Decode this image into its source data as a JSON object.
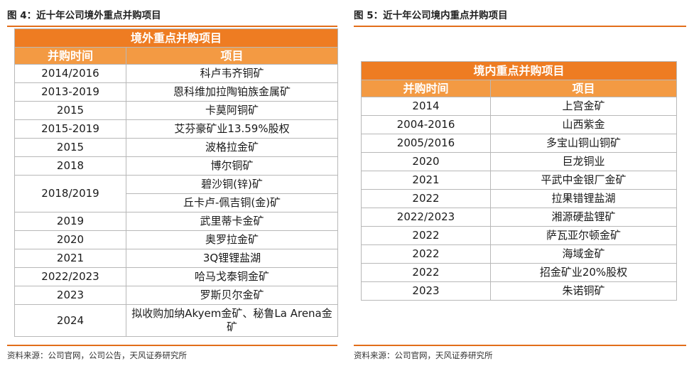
{
  "left": {
    "figure_title": "图 4：近十年公司境外重点并购项目",
    "table_title": "境外重点并购项目",
    "col_time": "并购时间",
    "col_project": "项目",
    "rows": [
      {
        "time": "2014/2016",
        "project": "科卢韦齐铜矿"
      },
      {
        "time": "2013-2019",
        "project": "恩科维加拉陶铂族金属矿"
      },
      {
        "time": "2015",
        "project": "卡莫阿铜矿"
      },
      {
        "time": "2015-2019",
        "project": "艾芬豪矿业13.59%股权"
      },
      {
        "time": "2015",
        "project": "波格拉金矿"
      },
      {
        "time": "2018",
        "project": "博尔铜矿"
      },
      {
        "time": "2018/2019",
        "project": "碧沙铜(锌)矿"
      },
      {
        "project": "丘卡卢-佩吉铜(金)矿"
      },
      {
        "time": "2019",
        "project": "武里蒂卡金矿"
      },
      {
        "time": "2020",
        "project": "奥罗拉金矿"
      },
      {
        "time": "2021",
        "project": "3Q锂锂盐湖"
      },
      {
        "time": "2022/2023",
        "project": "哈马戈泰铜金矿"
      },
      {
        "time": "2023",
        "project": "罗斯贝尔金矿"
      },
      {
        "time": "2024",
        "project": "拟收购加纳Akyem金矿、秘鲁La Arena金矿"
      }
    ],
    "source": "资料来源：公司官网，公司公告，天风证券研究所"
  },
  "right": {
    "figure_title": "图 5：近十年公司境内重点并购项目",
    "table_title": "境内重点并购项目",
    "col_time": "并购时间",
    "col_project": "项目",
    "rows": [
      {
        "time": "2014",
        "project": "上宫金矿"
      },
      {
        "time": "2004-2016",
        "project": "山西紫金"
      },
      {
        "time": "2005/2016",
        "project": "多宝山铜山铜矿"
      },
      {
        "time": "2020",
        "project": "巨龙铜业"
      },
      {
        "time": "2021",
        "project": "平武中金银厂金矿"
      },
      {
        "time": "2022",
        "project": "拉果错锂盐湖"
      },
      {
        "time": "2022/2023",
        "project": "湘源硬盐锂矿"
      },
      {
        "time": "2022",
        "project": "萨瓦亚尔顿金矿"
      },
      {
        "time": "2022",
        "project": "海域金矿"
      },
      {
        "time": "2022",
        "project": "招金矿业20%股权"
      },
      {
        "time": "2023",
        "project": "朱诺铜矿"
      }
    ],
    "source": "资料来源：公司官网，天风证券研究所"
  }
}
